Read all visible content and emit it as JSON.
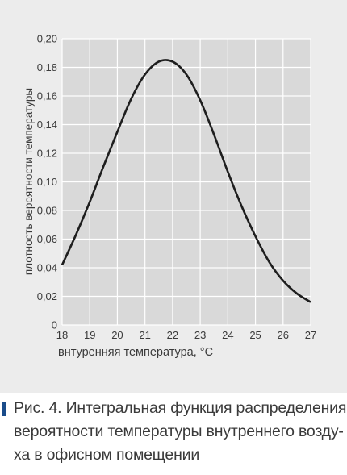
{
  "chart_data": {
    "type": "line",
    "title": "",
    "xlabel": "внтуренняя температура, °С",
    "ylabel": "плотность вероятности температуры",
    "xlim": [
      18,
      27
    ],
    "ylim": [
      0,
      0.2
    ],
    "x_ticks": [
      "18",
      "19",
      "20",
      "21",
      "22",
      "23",
      "24",
      "25",
      "26",
      "27"
    ],
    "y_ticks": [
      "0",
      "0,02",
      "0,04",
      "0,06",
      "0,08",
      "0,10",
      "0,12",
      "0,14",
      "0,16",
      "0,18",
      "0,20"
    ],
    "grid": true,
    "series": [
      {
        "color": "#1e1e1e",
        "x": [
          18,
          18.5,
          19,
          19.5,
          20,
          20.5,
          21,
          21.5,
          22,
          22.5,
          23,
          23.5,
          24,
          24.5,
          25,
          25.5,
          26,
          26.5,
          27
        ],
        "y": [
          0.042,
          0.063,
          0.086,
          0.111,
          0.135,
          0.158,
          0.175,
          0.184,
          0.184,
          0.175,
          0.157,
          0.133,
          0.107,
          0.083,
          0.062,
          0.044,
          0.031,
          0.022,
          0.016
        ]
      }
    ]
  },
  "caption": {
    "line1": "Рис. 4. Интегральная функция распределения",
    "line2": "вероятности температуры внутреннего возду-",
    "line3": "ха в офисном помещении"
  }
}
